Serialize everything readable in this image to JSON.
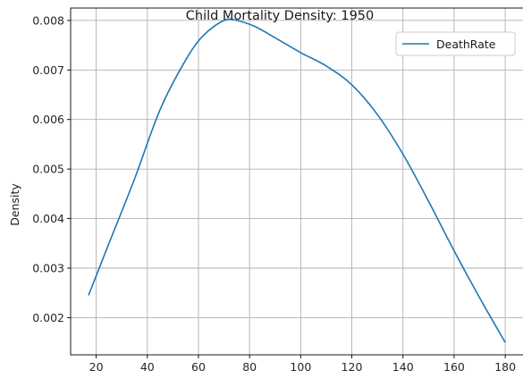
{
  "chart_data": {
    "type": "line",
    "title": "Child Mortality Density: 1950",
    "xlabel": "",
    "ylabel": "Density",
    "xlim": [
      10,
      188
    ],
    "ylim": [
      0.00125,
      0.00825
    ],
    "xticks": [
      20,
      40,
      60,
      80,
      100,
      120,
      140,
      160,
      180
    ],
    "yticks": [
      0.002,
      0.003,
      0.004,
      0.005,
      0.006,
      0.007,
      0.008
    ],
    "ytick_labels": [
      "0.002",
      "0.003",
      "0.004",
      "0.005",
      "0.006",
      "0.007",
      "0.008"
    ],
    "grid": true,
    "legend": {
      "position": "top-right",
      "entries": [
        "DeathRate"
      ]
    },
    "series": [
      {
        "name": "DeathRate",
        "color": "#1f77b4",
        "x": [
          17,
          25,
          35,
          45,
          55,
          62,
          70,
          75,
          82,
          90,
          100,
          110,
          120,
          130,
          140,
          150,
          160,
          170,
          180
        ],
        "y": [
          0.00245,
          0.0035,
          0.0048,
          0.0062,
          0.0072,
          0.0077,
          0.008,
          0.008,
          0.00788,
          0.00765,
          0.00735,
          0.00708,
          0.0067,
          0.0061,
          0.0053,
          0.00435,
          0.00335,
          0.0024,
          0.0015
        ]
      }
    ]
  }
}
